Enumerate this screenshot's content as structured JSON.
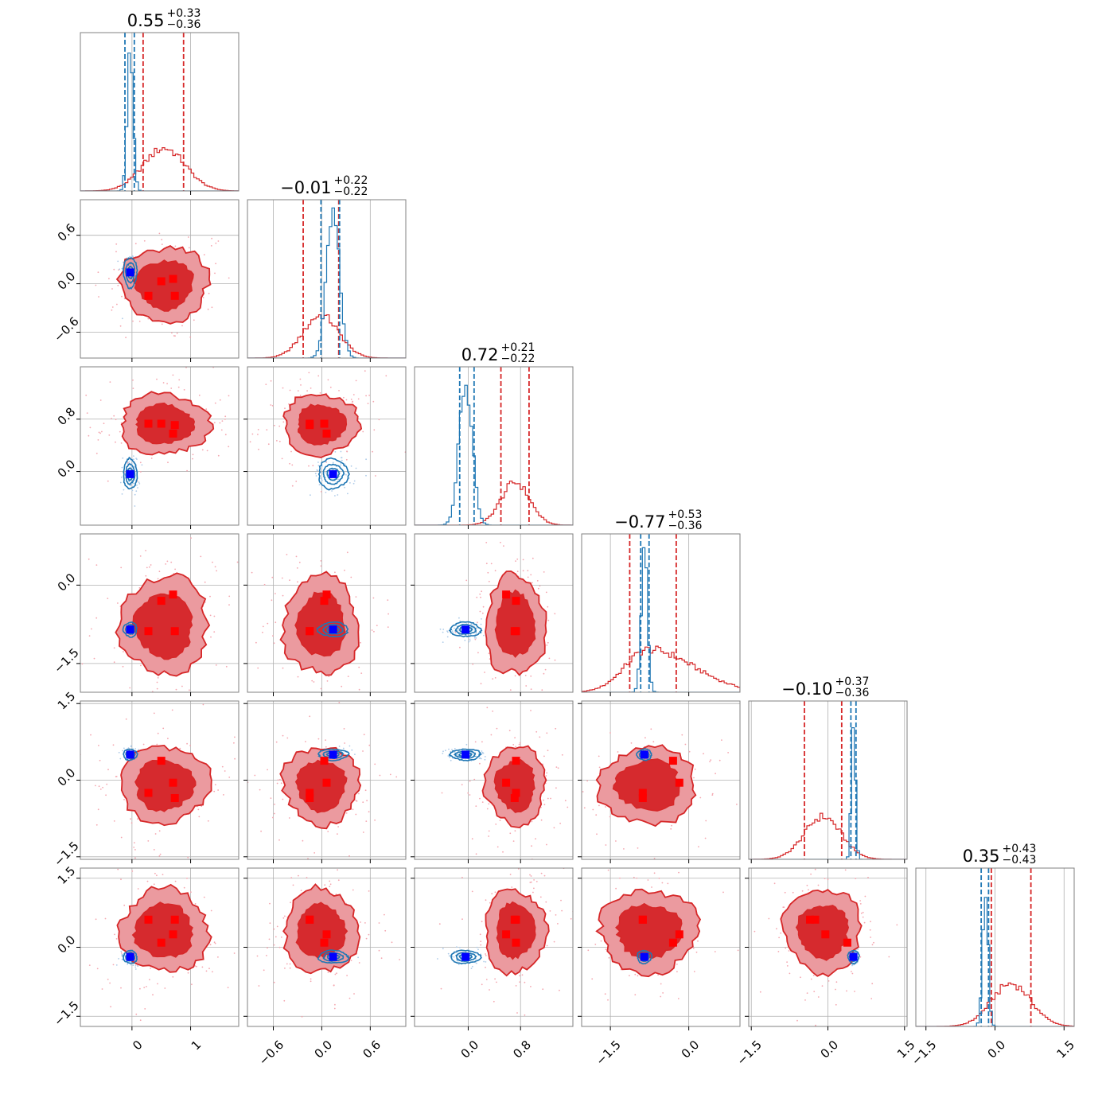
{
  "chart_data": {
    "type": "corner",
    "n_params": 6,
    "series": [
      {
        "name": "",
        "color": "#d62728",
        "role": "broad posterior (filled contours)"
      },
      {
        "name": "",
        "color": "#1f77b4",
        "role": "narrow posterior (line contours)"
      }
    ],
    "titles": [
      {
        "value": "0.55",
        "plus": "+0.33",
        "minus": "−0.36"
      },
      {
        "value": "−0.01",
        "plus": "+0.22",
        "minus": "−0.22"
      },
      {
        "value": "0.72",
        "plus": "+0.21",
        "minus": "−0.22"
      },
      {
        "value": "−0.77",
        "plus": "+0.53",
        "minus": "−0.36"
      },
      {
        "value": "−0.10",
        "plus": "+0.37",
        "minus": "−0.36"
      },
      {
        "value": "0.35",
        "plus": "+0.43",
        "minus": "−0.43"
      }
    ],
    "ranges": [
      [
        -0.88,
        1.82
      ],
      [
        -0.92,
        1.04
      ],
      [
        -0.82,
        1.6
      ],
      [
        -2.05,
        0.98
      ],
      [
        -1.55,
        1.55
      ],
      [
        -1.72,
        1.72
      ]
    ],
    "x_ticks": [
      [
        {
          "v": 0,
          "label": "0"
        },
        {
          "v": 1,
          "label": "1"
        }
      ],
      [
        {
          "v": -0.6,
          "label": "−0.6"
        },
        {
          "v": 0.0,
          "label": "0.0"
        },
        {
          "v": 0.6,
          "label": "0.6"
        }
      ],
      [
        {
          "v": 0.0,
          "label": "0.0"
        },
        {
          "v": 0.8,
          "label": "0.8"
        }
      ],
      [
        {
          "v": -1.5,
          "label": "−1.5"
        },
        {
          "v": 0.0,
          "label": "0.0"
        }
      ],
      [
        {
          "v": -1.5,
          "label": "−1.5"
        },
        {
          "v": 0.0,
          "label": "0.0"
        },
        {
          "v": 1.5,
          "label": "1.5"
        }
      ],
      [
        {
          "v": -1.5,
          "label": "−1.5"
        },
        {
          "v": 0.0,
          "label": "0.0"
        },
        {
          "v": 1.5,
          "label": "1.5"
        }
      ]
    ],
    "y_ticks": [
      [],
      [
        {
          "v": -0.6,
          "label": "−0.6"
        },
        {
          "v": 0.0,
          "label": "0.0"
        },
        {
          "v": 0.6,
          "label": "0.6"
        }
      ],
      [
        {
          "v": 0.0,
          "label": "0.0"
        },
        {
          "v": 0.8,
          "label": "0.8"
        }
      ],
      [
        {
          "v": -1.5,
          "label": "−1.5"
        },
        {
          "v": 0.0,
          "label": "0.0"
        }
      ],
      [
        {
          "v": -1.5,
          "label": "−1.5"
        },
        {
          "v": 0.0,
          "label": "0.0"
        },
        {
          "v": 1.5,
          "label": "1.5"
        }
      ],
      [
        {
          "v": -1.5,
          "label": "−1.5"
        },
        {
          "v": 0.0,
          "label": "0.0"
        },
        {
          "v": 1.5,
          "label": "1.5"
        }
      ]
    ],
    "red": {
      "mean": [
        0.55,
        -0.01,
        0.72,
        -0.77,
        -0.1,
        0.35
      ],
      "std": [
        0.36,
        0.22,
        0.22,
        0.45,
        0.36,
        0.43
      ],
      "quantile_lines": [
        [
          0.19,
          0.88
        ],
        [
          -0.23,
          0.21
        ],
        [
          0.5,
          0.93
        ],
        [
          -1.13,
          -0.24
        ],
        [
          -0.46,
          0.27
        ],
        [
          -0.08,
          0.78
        ]
      ],
      "markers": [
        [
          0.28,
          0.5,
          0.7,
          0.73
        ],
        [
          -0.15,
          0.03,
          0.06,
          -0.15
        ],
        [
          0.73,
          0.73,
          0.58,
          0.71
        ],
        [
          -0.88,
          -0.3,
          -0.18,
          -0.88
        ],
        [
          -0.25,
          0.38,
          -0.05,
          -0.35
        ],
        [
          0.6,
          0.1,
          0.28,
          0.6
        ]
      ]
    },
    "blue": {
      "mean": [
        -0.03,
        0.14,
        -0.04,
        -0.85,
        0.5,
        -0.21
      ],
      "std": [
        0.05,
        0.08,
        0.1,
        0.06,
        0.04,
        0.06
      ],
      "quantile_lines": [
        [
          -0.12,
          0.04
        ],
        [
          -0.01,
          0.22
        ],
        [
          -0.13,
          0.09
        ],
        [
          -0.92,
          -0.76
        ],
        [
          0.45,
          0.55
        ],
        [
          -0.3,
          -0.14
        ]
      ]
    }
  }
}
